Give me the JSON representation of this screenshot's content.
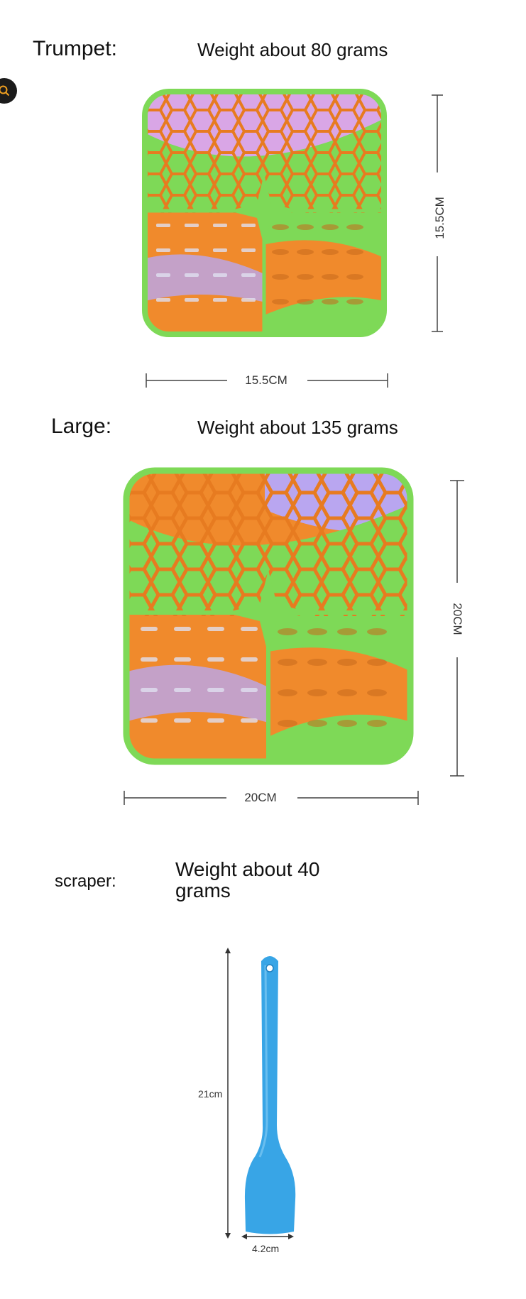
{
  "sections": {
    "trumpet": {
      "label": "Trumpet:",
      "weight": "Weight about 80 grams",
      "height_dim": "15.5CM",
      "width_dim": "15.5CM"
    },
    "large": {
      "label": "Large:",
      "weight": "Weight about 135 grams",
      "height_dim": "20CM",
      "width_dim": "20CM"
    },
    "scraper": {
      "label": "scraper:",
      "weight_line1": "Weight about 40",
      "weight_line2": "grams",
      "height_dim": "21cm",
      "width_dim": "4.2cm"
    }
  },
  "colors": {
    "orange": "#f08a2c",
    "green": "#7ed957",
    "lavender": "#b9a6f0",
    "blue": "#38a5e6"
  },
  "icons": {
    "search": "search-icon"
  }
}
